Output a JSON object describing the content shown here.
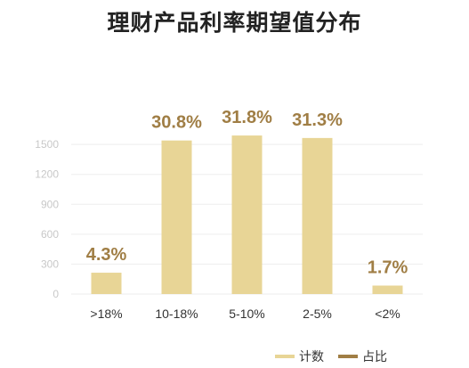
{
  "chart_data": {
    "type": "bar",
    "title": "理财产品利率期望值分布",
    "categories": [
      ">18%",
      "10-18%",
      "5-10%",
      "2-5%",
      "<2%"
    ],
    "series": [
      {
        "name": "计数",
        "values": [
          214,
          1540,
          1590,
          1565,
          85
        ]
      },
      {
        "name": "占比",
        "labels": [
          "4.3%",
          "30.8%",
          "31.8%",
          "31.3%",
          "1.7%"
        ]
      }
    ],
    "yticks": [
      0,
      300,
      600,
      900,
      1200,
      1500
    ],
    "ylim": [
      0,
      1680
    ],
    "grid": true,
    "legend_position": "bottom-right",
    "colors": {
      "bar": "#E8D596",
      "ratio": "#A07E45",
      "grid": "#eeeeee",
      "tick": "#c8c8c8"
    }
  }
}
